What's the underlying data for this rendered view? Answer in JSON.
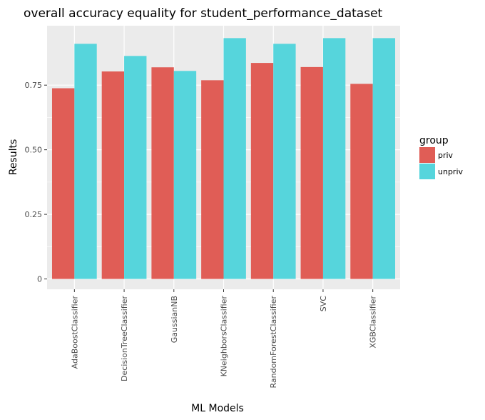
{
  "chart_data": {
    "type": "bar",
    "title": "overall accuracy equality for student_performance_dataset",
    "xlabel": "ML Models",
    "ylabel": "Results",
    "categories": [
      "AdaBoostClassifier",
      "DecisionTreeClassifier",
      "GaussianNB",
      "KNeighborsClassifier",
      "RandomForestClassifier",
      "SVC",
      "XGBClassifier"
    ],
    "series": [
      {
        "name": "priv",
        "color": "#e05d56",
        "values": [
          0.738,
          0.803,
          0.819,
          0.769,
          0.836,
          0.82,
          0.755
        ]
      },
      {
        "name": "unpriv",
        "color": "#56d5dc",
        "values": [
          0.91,
          0.863,
          0.805,
          0.932,
          0.91,
          0.932,
          0.932
        ]
      }
    ],
    "yticks": [
      0,
      0.25,
      0.5,
      0.75
    ],
    "ytick_labels": [
      "0",
      "0.25",
      "0.50",
      "0.75"
    ],
    "ylim": [
      -0.04,
      0.98
    ],
    "grid": true,
    "legend": {
      "title": "group",
      "position": "right"
    },
    "panel_color": "#ebebeb",
    "grid_color": "#ffffff"
  }
}
